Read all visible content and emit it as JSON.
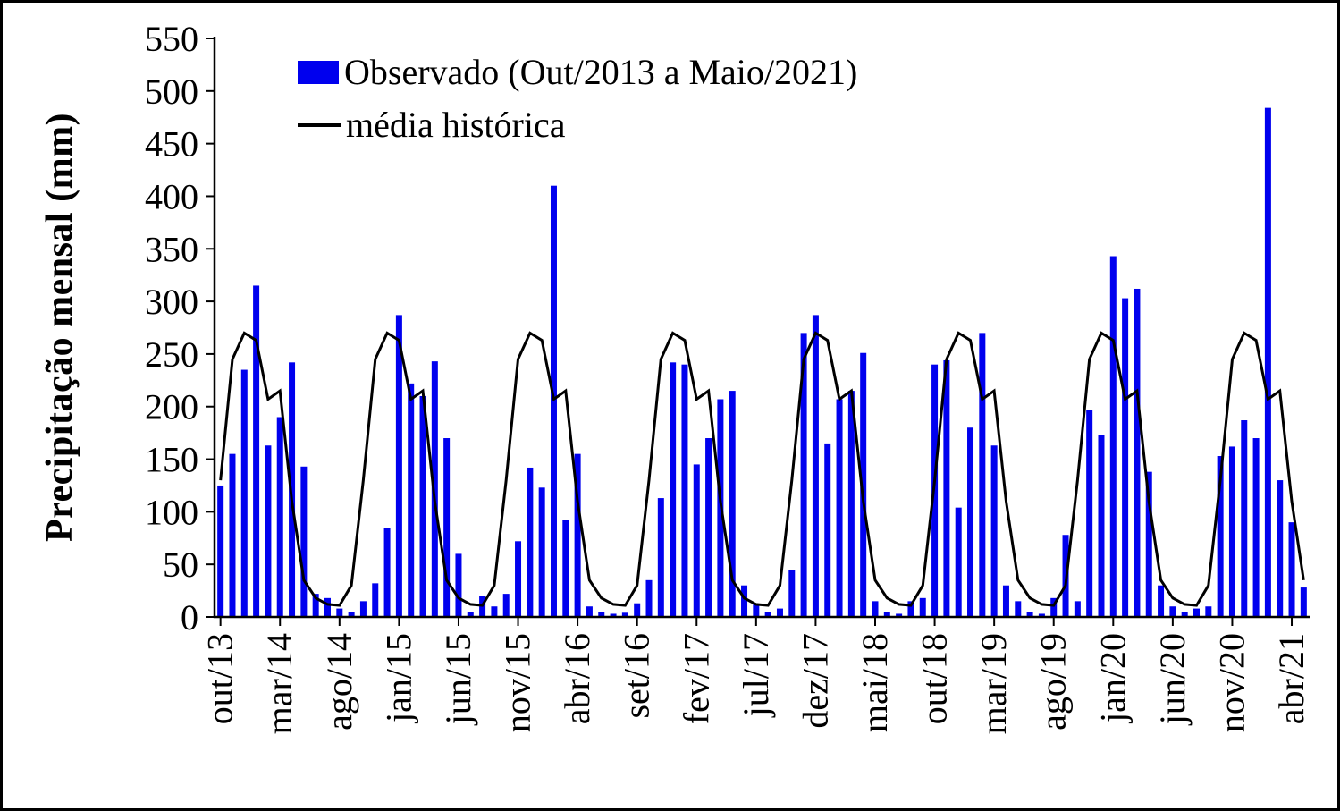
{
  "chart_data": {
    "type": "bar",
    "title": "",
    "xlabel": "",
    "ylabel": "Precipitação mensal (mm)",
    "ylim": [
      0,
      550
    ],
    "ytick_step": 50,
    "grid": false,
    "legend_position": "top-left-inside",
    "x_tick_every": 5,
    "x_tick_labels": [
      "out/13",
      "mar/14",
      "ago/14",
      "jan/15",
      "jun/15",
      "nov/15",
      "abr/16",
      "set/16",
      "fev/17",
      "jul/17",
      "dez/17",
      "mai/18",
      "out/18",
      "mar/19",
      "ago/19",
      "jan/20",
      "jun/20",
      "nov/20",
      "abr/21"
    ],
    "categories": [
      "out/13",
      "nov/13",
      "dez/13",
      "jan/14",
      "fev/14",
      "mar/14",
      "abr/14",
      "mai/14",
      "jun/14",
      "jul/14",
      "ago/14",
      "set/14",
      "out/14",
      "nov/14",
      "dez/14",
      "jan/15",
      "fev/15",
      "mar/15",
      "abr/15",
      "mai/15",
      "jun/15",
      "jul/15",
      "ago/15",
      "set/15",
      "out/15",
      "nov/15",
      "dez/15",
      "jan/16",
      "fev/16",
      "mar/16",
      "abr/16",
      "mai/16",
      "jun/16",
      "jul/16",
      "ago/16",
      "set/16",
      "out/16",
      "nov/16",
      "dez/16",
      "jan/17",
      "fev/17",
      "mar/17",
      "abr/17",
      "mai/17",
      "jun/17",
      "jul/17",
      "ago/17",
      "set/17",
      "out/17",
      "nov/17",
      "dez/17",
      "jan/18",
      "fev/18",
      "mar/18",
      "abr/18",
      "mai/18",
      "jun/18",
      "jul/18",
      "ago/18",
      "set/18",
      "out/18",
      "nov/18",
      "dez/18",
      "jan/19",
      "fev/19",
      "mar/19",
      "abr/19",
      "mai/19",
      "jun/19",
      "jul/19",
      "ago/19",
      "set/19",
      "out/19",
      "nov/19",
      "dez/19",
      "jan/20",
      "fev/20",
      "mar/20",
      "abr/20",
      "mai/20",
      "jun/20",
      "jul/20",
      "ago/20",
      "set/20",
      "out/20",
      "nov/20",
      "dez/20",
      "jan/21",
      "fev/21",
      "mar/21",
      "abr/21",
      "mai/21"
    ],
    "series": [
      {
        "name": "Observado (Out/2013 a Maio/2021)",
        "type": "bar",
        "color": "#0000ee",
        "values": [
          125,
          155,
          235,
          315,
          163,
          190,
          242,
          143,
          22,
          18,
          8,
          5,
          15,
          32,
          85,
          287,
          222,
          210,
          243,
          170,
          60,
          5,
          20,
          10,
          22,
          72,
          142,
          123,
          410,
          92,
          155,
          10,
          5,
          3,
          4,
          13,
          35,
          113,
          242,
          240,
          145,
          170,
          207,
          215,
          30,
          12,
          5,
          8,
          45,
          270,
          287,
          165,
          207,
          215,
          251,
          15,
          5,
          3,
          15,
          18,
          240,
          244,
          104,
          180,
          270,
          163,
          30,
          15,
          5,
          3,
          18,
          78,
          15,
          197,
          173,
          343,
          303,
          312,
          138,
          30,
          10,
          5,
          8,
          10,
          153,
          162,
          187,
          170,
          484,
          130,
          90,
          28
        ]
      },
      {
        "name": "média histórica",
        "type": "line",
        "color": "#000000",
        "monthly_means": {
          "jan": 263,
          "fev": 207,
          "mar": 215,
          "abr": 110,
          "mai": 35,
          "jun": 18,
          "jul": 12,
          "ago": 11,
          "set": 30,
          "out": 130,
          "nov": 245,
          "dez": 270
        }
      }
    ]
  }
}
